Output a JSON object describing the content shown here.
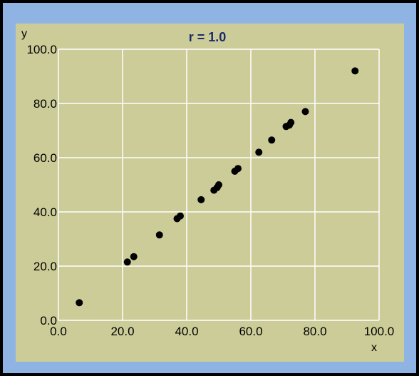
{
  "chart_data": {
    "type": "scatter",
    "title": "r = 1.0",
    "xlabel": "x",
    "ylabel": "y",
    "xlim": [
      0,
      100
    ],
    "ylim": [
      0,
      100
    ],
    "grid": true,
    "x_ticks": [
      "0.0",
      "20.0",
      "40.0",
      "60.0",
      "80.0",
      "100.0"
    ],
    "y_ticks": [
      "0.0",
      "20.0",
      "40.0",
      "60.0",
      "80.0",
      "100.0"
    ],
    "points": [
      {
        "x": 6.5,
        "y": 6.5
      },
      {
        "x": 21.5,
        "y": 21.5
      },
      {
        "x": 23.5,
        "y": 23.5
      },
      {
        "x": 31.5,
        "y": 31.5
      },
      {
        "x": 37.0,
        "y": 37.5
      },
      {
        "x": 38.0,
        "y": 38.5
      },
      {
        "x": 44.5,
        "y": 44.5
      },
      {
        "x": 48.5,
        "y": 48.0
      },
      {
        "x": 49.5,
        "y": 49.0
      },
      {
        "x": 50.0,
        "y": 50.0
      },
      {
        "x": 55.0,
        "y": 55.0
      },
      {
        "x": 56.0,
        "y": 56.0
      },
      {
        "x": 62.5,
        "y": 62.0
      },
      {
        "x": 66.5,
        "y": 66.5
      },
      {
        "x": 71.0,
        "y": 71.5
      },
      {
        "x": 72.0,
        "y": 72.0
      },
      {
        "x": 72.5,
        "y": 73.0
      },
      {
        "x": 77.0,
        "y": 77.0
      },
      {
        "x": 92.5,
        "y": 92.0
      }
    ],
    "colors": {
      "panel": "#cccc99",
      "border": "#8fb3e3",
      "grid": "#ffffff",
      "point": "#000000",
      "title": "#1a2a6c"
    }
  }
}
